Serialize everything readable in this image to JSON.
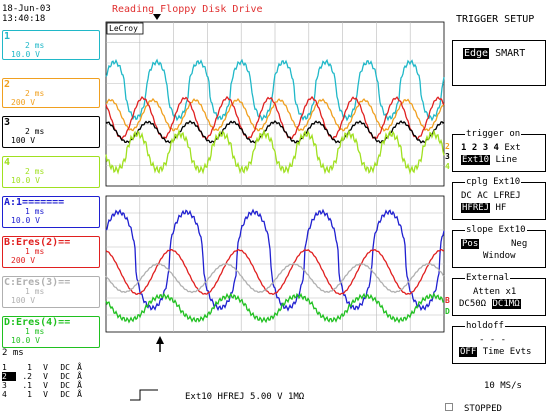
{
  "header": {
    "date": "18-Jun-03",
    "time": "13:40:18",
    "title": "Reading Floppy Disk Drive",
    "panel_title": "TRIGGER SETUP"
  },
  "brand": "LeCroy",
  "channels": [
    {
      "num": "1",
      "tb": "2 ms",
      "vdiv": "10.0 V",
      "color": "#20b8c8"
    },
    {
      "num": "2",
      "tb": "2 ms",
      "vdiv": "200 V",
      "color": "#f0a020"
    },
    {
      "num": "3",
      "tb": "2 ms",
      "vdiv": "100 V",
      "color": "#000000"
    },
    {
      "num": "4",
      "tb": "2 ms",
      "vdiv": "10.0 V",
      "color": "#a0e020"
    },
    {
      "num": "A:1=======",
      "tb": "1 ms",
      "vdiv": "10.0 V",
      "color": "#2020d0"
    },
    {
      "num": "B:Eres(2)==",
      "tb": "1 ms",
      "vdiv": "200 V",
      "color": "#e02020"
    },
    {
      "num": "C:Eres(3)==",
      "tb": "1 ms",
      "vdiv": "100 V",
      "color": "#b0b0b0"
    },
    {
      "num": "D:Eres(4)==",
      "tb": "1 ms",
      "vdiv": "10.0 V",
      "color": "#20c020"
    }
  ],
  "timebase": "2 ms",
  "chan_table": [
    {
      "ch": "1",
      "v": "1",
      "unit": "V",
      "cpl": "DC",
      "bw": "Å"
    },
    {
      "ch": "2",
      "v": ".2",
      "unit": "V",
      "cpl": "DC",
      "bw": "Å"
    },
    {
      "ch": "3",
      "v": ".1",
      "unit": "V",
      "cpl": "DC",
      "bw": "Å"
    },
    {
      "ch": "4",
      "v": "1",
      "unit": "V",
      "cpl": "DC",
      "bw": "Å"
    }
  ],
  "trigger_menu": {
    "type_selected": "Edge",
    "type_other": "SMART",
    "trigger_on_label": "trigger on",
    "sources": [
      "1",
      "2",
      "3",
      "4"
    ],
    "src_ext": "Ext",
    "src_ext10": "Ext10",
    "src_line": "Line",
    "coupling_label": "cplg Ext10",
    "cpl_dc": "DC",
    "cpl_ac": "AC",
    "cpl_lfrej": "LFREJ",
    "cpl_hfrej": "HFREJ",
    "cpl_hf": "HF",
    "slope_label": "slope Ext10",
    "slope_pos": "Pos",
    "slope_neg": "Neg",
    "slope_window": "Window",
    "external_label": "External",
    "atten": "Atten x1",
    "dc50": "DC50Ω",
    "dc1m": "DC1MΩ",
    "holdoff_label": "holdoff",
    "holdoff_value": "- - -",
    "holdoff_off": "OFF",
    "holdoff_time": "Time",
    "holdoff_evts": "Evts"
  },
  "status": {
    "trigger_desc": "Ext10 HFREJ 5.00 V 1MΩ",
    "sample_rate": "10 MS/s",
    "state": "STOPPED"
  },
  "trace_markers_top": [
    "2",
    "3",
    "4"
  ],
  "trace_markers_bottom": [
    "B",
    "D"
  ]
}
